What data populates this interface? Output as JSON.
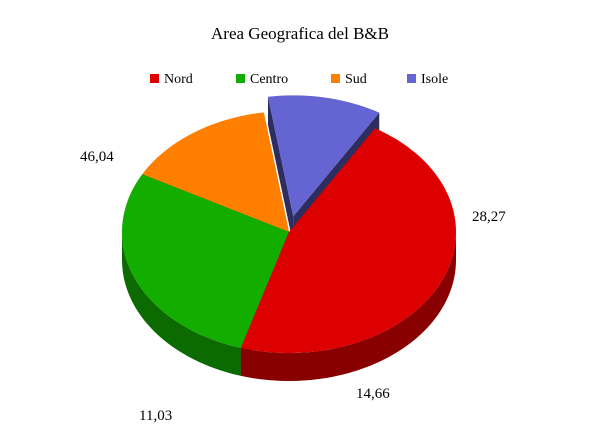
{
  "chart_data": {
    "type": "pie",
    "title": "Area Geografica del B&B",
    "legend_position": "top",
    "exploded": "Isole",
    "slices": [
      {
        "label": "Nord",
        "value": 46.04,
        "value_label": "46,04",
        "color": "#dd0000"
      },
      {
        "label": "Centro",
        "value": 28.27,
        "value_label": "28,27",
        "color": "#13ad00"
      },
      {
        "label": "Sud",
        "value": 14.66,
        "value_label": "14,66",
        "color": "#ff8000"
      },
      {
        "label": "Isole",
        "value": 11.03,
        "value_label": "11,03",
        "color": "#6464d2"
      }
    ]
  }
}
